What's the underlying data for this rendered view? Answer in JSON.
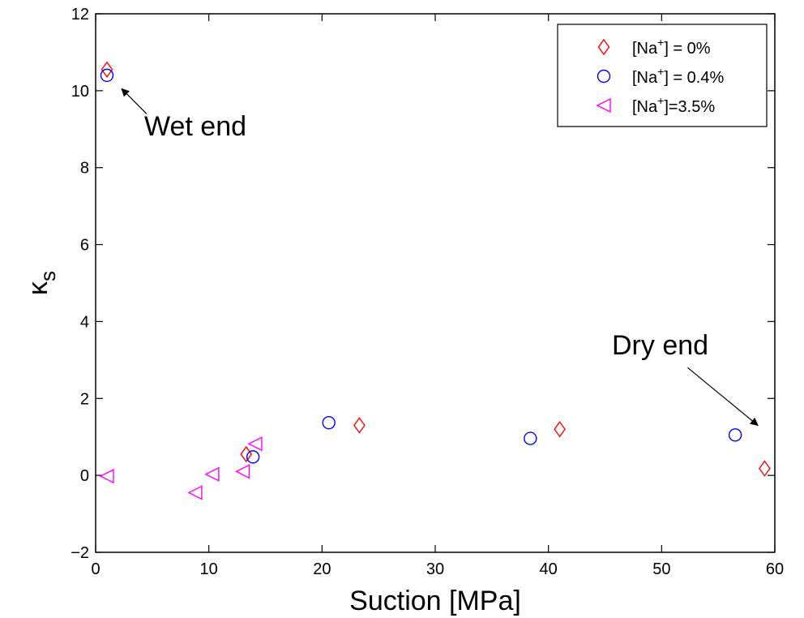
{
  "chart_data": {
    "type": "scatter",
    "xlabel": "Suction [MPa]",
    "ylabel": "κ",
    "ylabel_subscript": "s",
    "xlim": [
      0,
      60
    ],
    "ylim": [
      -2,
      12
    ],
    "xticks": [
      0,
      10,
      20,
      30,
      40,
      50,
      60
    ],
    "yticks": [
      -2,
      0,
      2,
      4,
      6,
      8,
      10,
      12
    ],
    "grid": false,
    "legend_position": "top-right",
    "series": [
      {
        "name": "[Na+] = 0%",
        "legend_parts": [
          "[Na",
          "+",
          "] = 0%"
        ],
        "marker": "diamond",
        "color": "#ff0000",
        "x": [
          1.0,
          13.3,
          23.3,
          41.0,
          59.1
        ],
        "y": [
          10.55,
          0.55,
          1.3,
          1.2,
          0.18
        ]
      },
      {
        "name": "[Na+] = 0.4%",
        "legend_parts": [
          "[Na",
          "+",
          "] = 0.4%"
        ],
        "marker": "circle",
        "color": "#0000ff",
        "x": [
          1.0,
          13.9,
          20.6,
          38.4,
          56.5
        ],
        "y": [
          10.4,
          0.48,
          1.37,
          0.96,
          1.05
        ]
      },
      {
        "name": "[Na+]=3.5%",
        "legend_parts": [
          "[Na",
          "+",
          "]=3.5%"
        ],
        "marker": "triangle-left",
        "color": "#ff00ff",
        "x": [
          1.0,
          8.8,
          10.3,
          13.0,
          14.1
        ],
        "y": [
          -0.02,
          -0.45,
          0.03,
          0.1,
          0.82
        ]
      }
    ],
    "annotations": [
      {
        "text": "Wet end",
        "arrow_from": [
          4.5,
          9.4
        ],
        "arrow_to": [
          2.3,
          10.05
        ]
      },
      {
        "text": "Dry end",
        "arrow_from": [
          52.3,
          2.8
        ],
        "arrow_to": [
          58.5,
          1.3
        ]
      }
    ]
  }
}
